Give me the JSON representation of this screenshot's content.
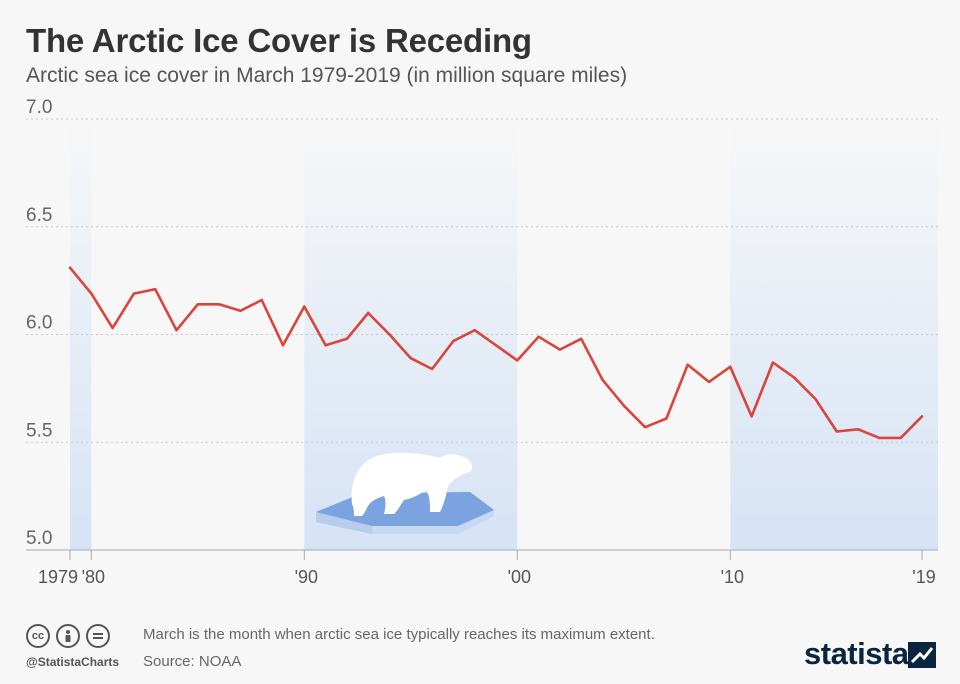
{
  "title": "The Arctic Ice Cover is Receding",
  "subtitle": "Arctic sea ice cover in March 1979-2019 (in million square miles)",
  "footer": {
    "license_icons": [
      "cc-icon",
      "attribution-icon",
      "no-derivatives-icon"
    ],
    "handle": "@StatistaCharts",
    "note": "March is the month when arctic sea ice typically reaches its maximum extent.",
    "source": "Source: NOAA",
    "brand": "statista"
  },
  "colors": {
    "line": "#d9453a",
    "background": "#f7f7f7",
    "band": "#dde7f5",
    "ice": "#7aa3e0",
    "brand": "#0a2540"
  },
  "chart_data": {
    "type": "line",
    "x": [
      1979,
      1980,
      1981,
      1982,
      1983,
      1984,
      1985,
      1986,
      1987,
      1988,
      1989,
      1990,
      1991,
      1992,
      1993,
      1994,
      1995,
      1996,
      1997,
      1998,
      1999,
      2000,
      2001,
      2002,
      2003,
      2004,
      2005,
      2006,
      2007,
      2008,
      2009,
      2010,
      2011,
      2012,
      2013,
      2014,
      2015,
      2016,
      2017,
      2018,
      2019
    ],
    "values": [
      6.31,
      6.19,
      6.03,
      6.19,
      6.21,
      6.02,
      6.14,
      6.14,
      6.11,
      6.16,
      5.95,
      6.13,
      5.95,
      5.98,
      6.1,
      6.0,
      5.89,
      5.84,
      5.97,
      6.02,
      5.95,
      5.88,
      5.99,
      5.93,
      5.98,
      5.79,
      5.67,
      5.57,
      5.61,
      5.86,
      5.78,
      5.85,
      5.62,
      5.87,
      5.8,
      5.7,
      5.55,
      5.56,
      5.52,
      5.52,
      5.62
    ],
    "ylim": [
      5.0,
      7.0
    ],
    "yticks": [
      5.0,
      5.5,
      6.0,
      6.5,
      7.0
    ],
    "ytick_labels": [
      "5.0",
      "5.5",
      "6.0",
      "6.5",
      "7.0"
    ],
    "xticks": [
      1979,
      1980,
      1990,
      2000,
      2010,
      2019
    ],
    "xtick_labels": [
      "1979",
      "'80",
      "'90",
      "'00",
      "'10",
      "'19"
    ],
    "decade_bands": [
      [
        1979,
        1980
      ],
      [
        1990,
        2000
      ],
      [
        2010,
        2019
      ]
    ],
    "grid": true,
    "xlabel": "",
    "ylabel": ""
  }
}
